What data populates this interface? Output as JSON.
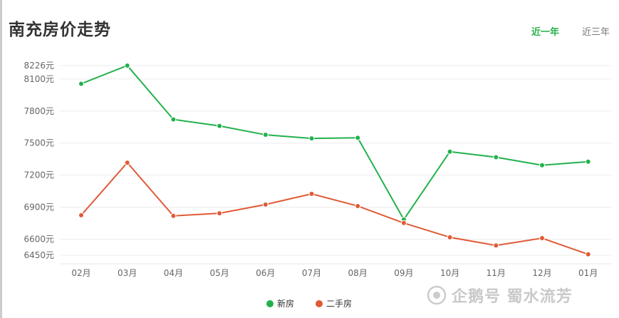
{
  "header": {
    "title": "南充房价走势",
    "tabs": [
      {
        "label": "近一年",
        "active": true
      },
      {
        "label": "近三年",
        "active": false
      }
    ]
  },
  "watermark": {
    "text": "企鹅号 蜀水流芳"
  },
  "colors": {
    "new": "#22b14c",
    "second": "#e05a36",
    "tab_active": "#2bb24c"
  },
  "chart_data": {
    "type": "line",
    "categories": [
      "02月",
      "03月",
      "04月",
      "05月",
      "06月",
      "07月",
      "08月",
      "09月",
      "10月",
      "11月",
      "12月",
      "01月"
    ],
    "series": [
      {
        "name": "新房",
        "values": [
          8056,
          8226,
          7722,
          7661,
          7578,
          7544,
          7550,
          6785,
          7420,
          7368,
          7293,
          7326
        ]
      },
      {
        "name": "二手房",
        "values": [
          6825,
          7317,
          6819,
          6843,
          6925,
          7025,
          6911,
          6752,
          6618,
          6542,
          6610,
          6459
        ]
      }
    ],
    "y_ticks": [
      {
        "value": 8226,
        "label": "8226元"
      },
      {
        "value": 8100,
        "label": "8100元"
      },
      {
        "value": 7800,
        "label": "7800元"
      },
      {
        "value": 7500,
        "label": "7500元"
      },
      {
        "value": 7200,
        "label": "7200元"
      },
      {
        "value": 6900,
        "label": "6900元"
      },
      {
        "value": 6600,
        "label": "6600元"
      },
      {
        "value": 6450,
        "label": "6450元"
      }
    ],
    "ylim": [
      6450,
      8226
    ],
    "grid": true,
    "legend": "bottom-center"
  }
}
